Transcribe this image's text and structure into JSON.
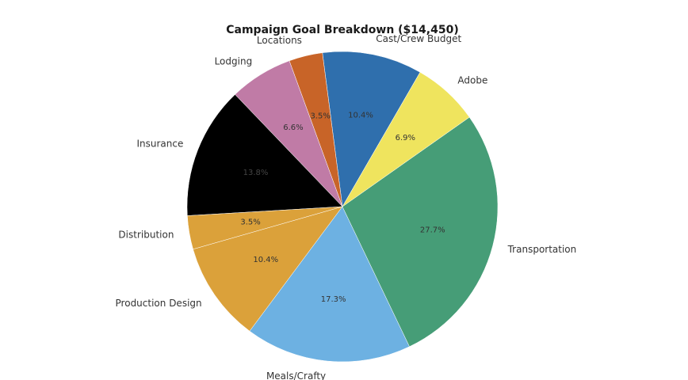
{
  "chart_data": {
    "type": "pie",
    "title": "Campaign Goal Breakdown ($14,450)",
    "start_angle_deg": 60,
    "direction": "counterclockwise",
    "slices": [
      {
        "label": "Cast/Crew Budget",
        "pct_label": "10.4%",
        "value": 10.4,
        "color": "#2f6fad"
      },
      {
        "label": "Locations",
        "pct_label": "3.5%",
        "value": 3.5,
        "color": "#c86428"
      },
      {
        "label": "Lodging",
        "pct_label": "6.6%",
        "value": 6.6,
        "color": "#c07ba6"
      },
      {
        "label": "Insurance",
        "pct_label": "13.8%",
        "value": 13.8,
        "color": "#000000"
      },
      {
        "label": "Distribution",
        "pct_label": "3.5%",
        "value": 3.5,
        "color": "#dba13a"
      },
      {
        "label": "Production Design",
        "pct_label": "10.4%",
        "value": 10.4,
        "color": "#dba13a"
      },
      {
        "label": "Meals/Crafty",
        "pct_label": "17.3%",
        "value": 17.3,
        "color": "#6db1e2"
      },
      {
        "label": "Transportation",
        "pct_label": "27.7%",
        "value": 27.7,
        "color": "#469d77"
      },
      {
        "label": "Adobe",
        "pct_label": "6.9%",
        "value": 6.9,
        "color": "#efe45e"
      }
    ]
  }
}
